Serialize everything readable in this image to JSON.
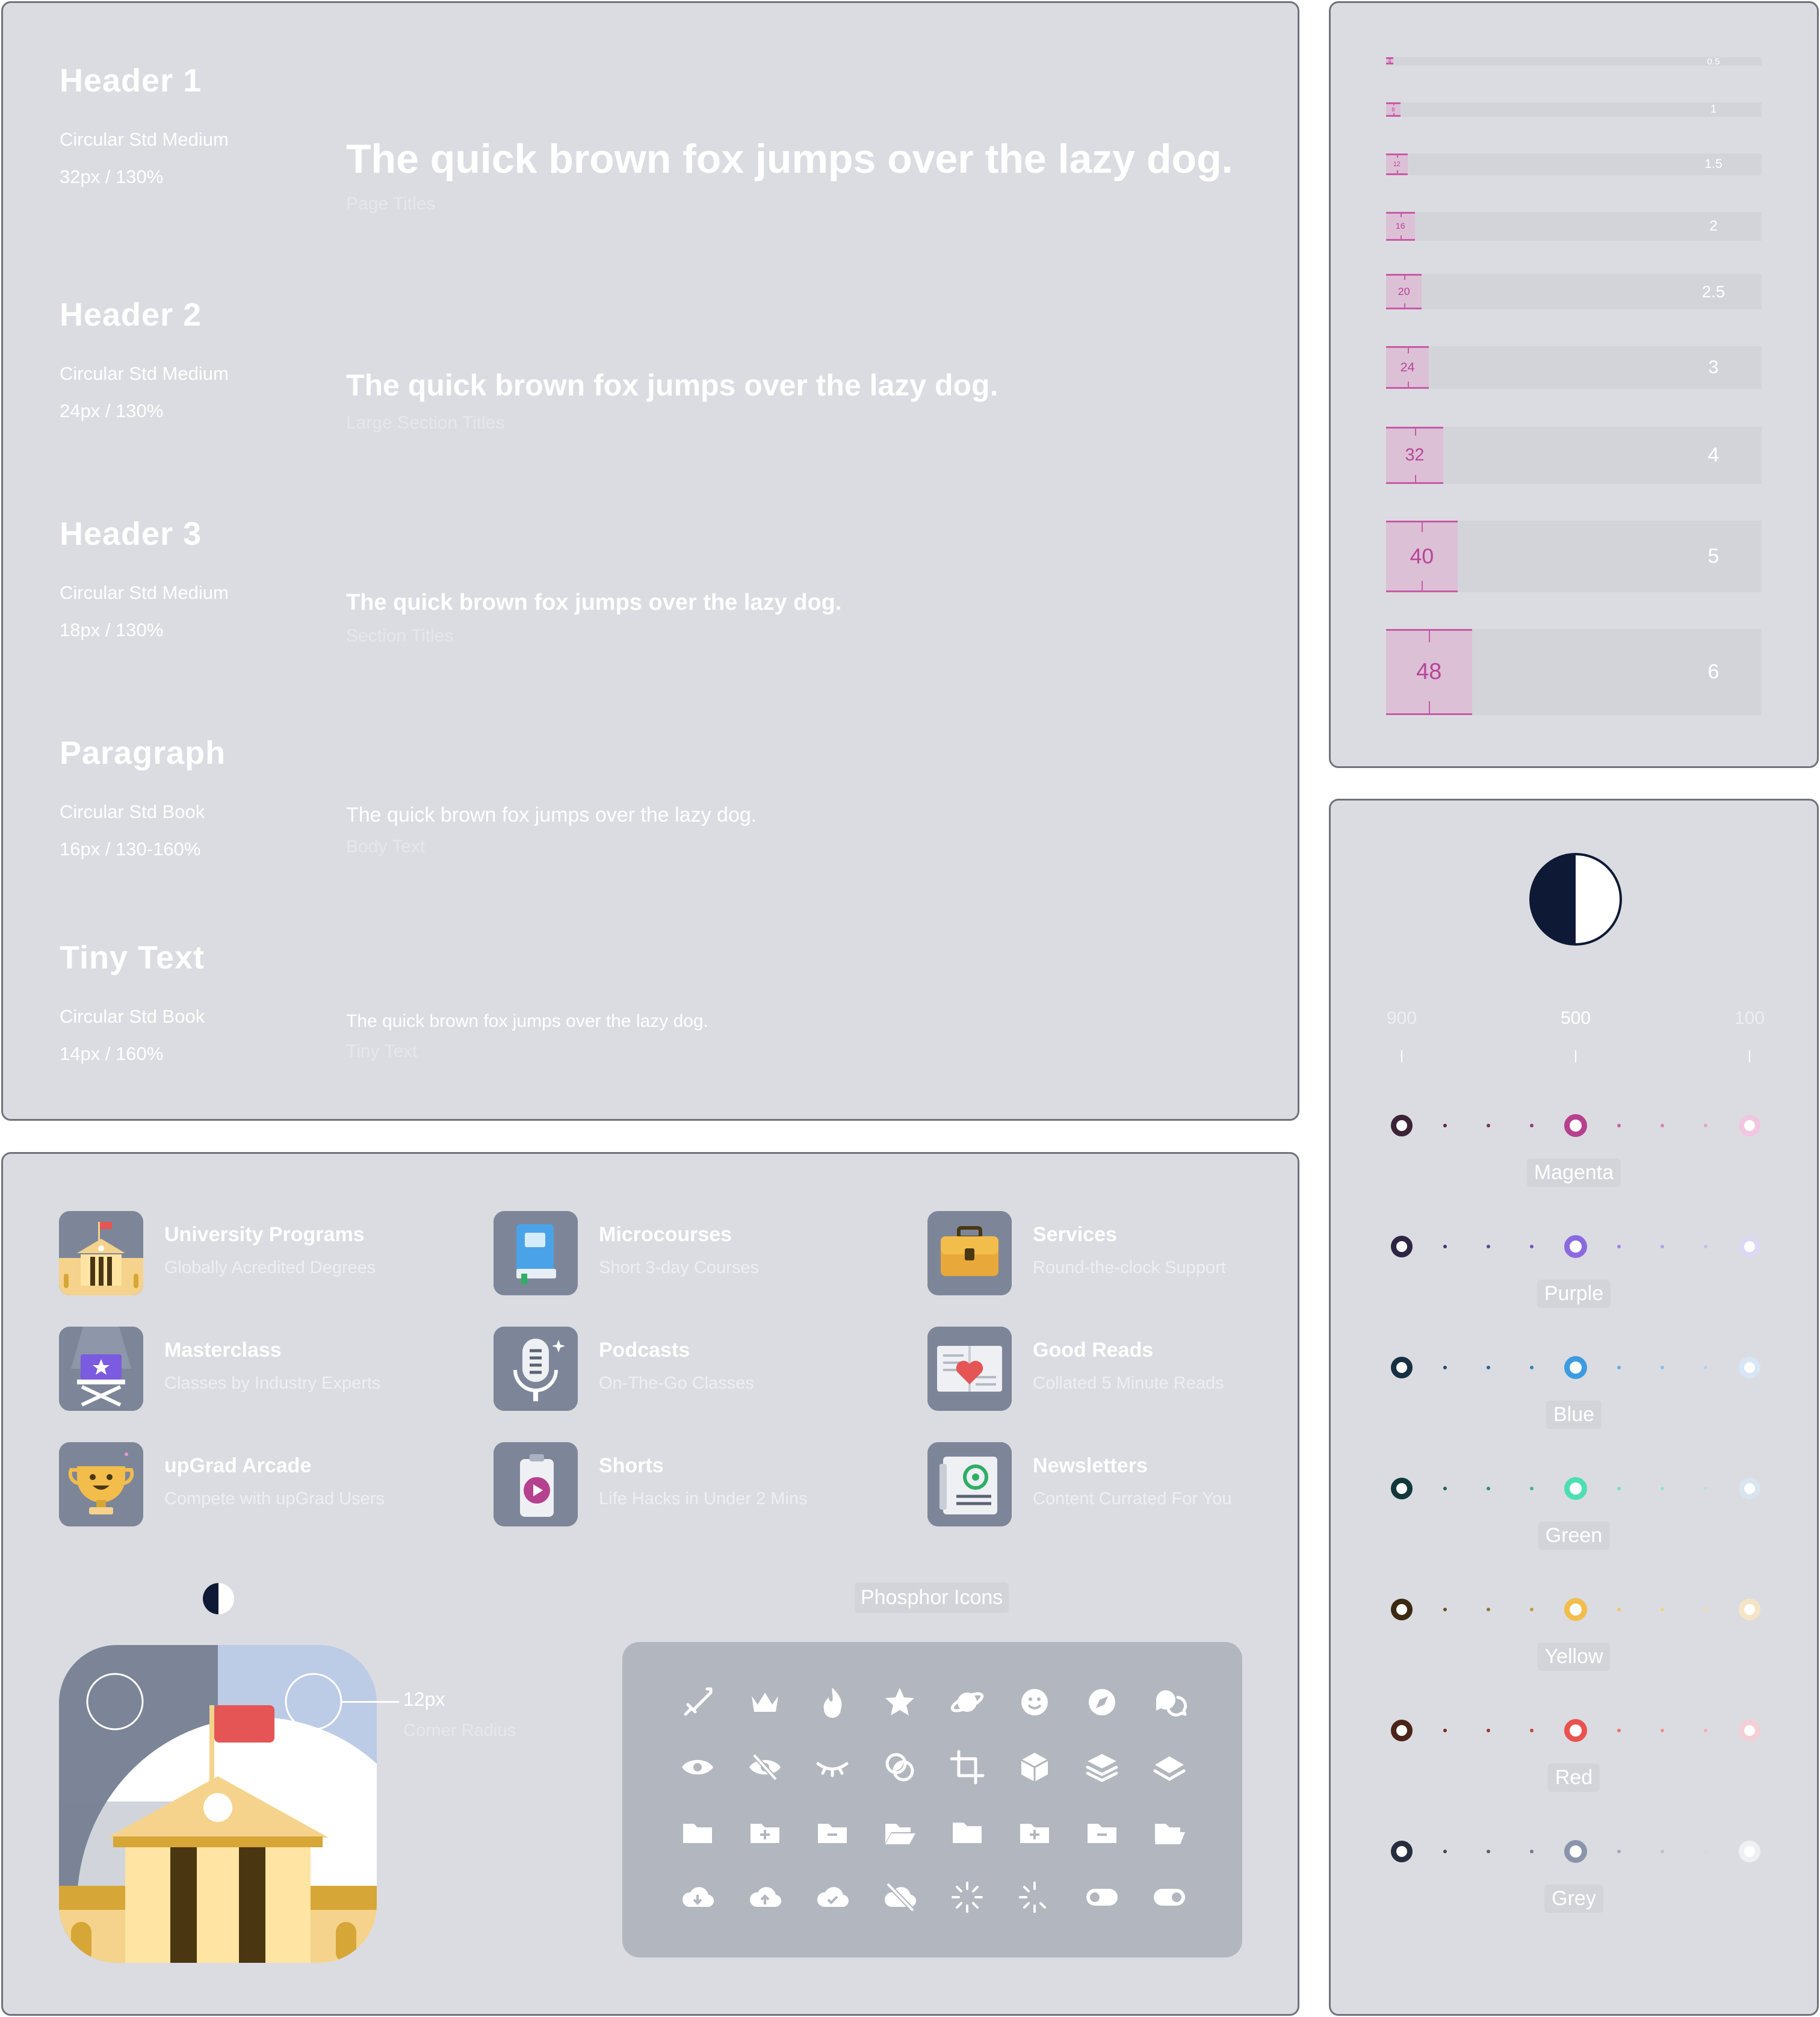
{
  "typography": {
    "sample_text": "The quick brown fox jumps over the lazy dog.",
    "styles": [
      {
        "name": "Header 1",
        "font": "Circular Std Medium",
        "size": "32px / 130%",
        "usage": "Page Titles"
      },
      {
        "name": "Header 2",
        "font": "Circular Std Medium",
        "size": "24px / 130%",
        "usage": "Large Section Titles"
      },
      {
        "name": "Header 3",
        "font": "Circular Std Medium",
        "size": "18px / 130%",
        "usage": "Section Titles"
      },
      {
        "name": "Paragraph",
        "font": "Circular Std Book",
        "size": "16px / 130-160%",
        "usage": "Body Text"
      },
      {
        "name": "Tiny Text",
        "font": "Circular Std Book",
        "size": "14px / 160%",
        "usage": "Tiny Text"
      }
    ]
  },
  "spacing": {
    "rows": [
      {
        "px": "4",
        "mult": "0.5"
      },
      {
        "px": "8",
        "mult": "1"
      },
      {
        "px": "12",
        "mult": "1.5"
      },
      {
        "px": "16",
        "mult": "2"
      },
      {
        "px": "20",
        "mult": "2.5"
      },
      {
        "px": "24",
        "mult": "3"
      },
      {
        "px": "32",
        "mult": "4"
      },
      {
        "px": "40",
        "mult": "5"
      },
      {
        "px": "48",
        "mult": "6"
      }
    ]
  },
  "colors": {
    "shade_labels": [
      "900",
      "500",
      "100"
    ],
    "palettes": [
      {
        "name": "Magenta",
        "dark": "#3b2335",
        "main": "#b6418f",
        "light": "#f1c6e0"
      },
      {
        "name": "Purple",
        "dark": "#2e2545",
        "main": "#8a6adf",
        "light": "#dcd8f3"
      },
      {
        "name": "Blue",
        "dark": "#173142",
        "main": "#3d9be0",
        "light": "#d8e5f4"
      },
      {
        "name": "Green",
        "dark": "#11393a",
        "main": "#4ddfb4",
        "light": "#d8e4ee"
      },
      {
        "name": "Yellow",
        "dark": "#3a2a12",
        "main": "#f2bd4b",
        "light": "#f5e5c6"
      },
      {
        "name": "Red",
        "dark": "#4a2418",
        "main": "#e8524f",
        "light": "#f3cfd6"
      },
      {
        "name": "Grey",
        "dark": "#262d3e",
        "main": "#8a94aa",
        "light": "#eef0f4"
      }
    ]
  },
  "products": [
    {
      "title": "University Programs",
      "subtitle": "Globally Acredited Degrees",
      "icon": "university-icon"
    },
    {
      "title": "Microcourses",
      "subtitle": "Short 3-day Courses",
      "icon": "book-icon"
    },
    {
      "title": "Services",
      "subtitle": "Round-the-clock Support",
      "icon": "briefcase-icon"
    },
    {
      "title": "Masterclass",
      "subtitle": "Classes by Industry Experts",
      "icon": "director-chair-icon"
    },
    {
      "title": "Podcasts",
      "subtitle": "On-The-Go Classes",
      "icon": "microphone-icon"
    },
    {
      "title": "Good Reads",
      "subtitle": "Collated 5 Minute Reads",
      "icon": "open-book-heart-icon"
    },
    {
      "title": "upGrad Arcade",
      "subtitle": "Compete with upGrad Users",
      "icon": "trophy-icon"
    },
    {
      "title": "Shorts",
      "subtitle": "Life Hacks in Under 2 Mins",
      "icon": "play-clip-icon"
    },
    {
      "title": "Newsletters",
      "subtitle": "Content Currated For You",
      "icon": "newsletter-icon"
    }
  ],
  "corner_radius": {
    "value": "12px",
    "label": "Corner Radius"
  },
  "phosphor": {
    "title": "Phosphor Icons",
    "icons": [
      "sword-icon",
      "crown-icon",
      "fire-icon",
      "star-icon",
      "planet-icon",
      "smiley-icon",
      "compass-icon",
      "chats-icon",
      "eye-icon",
      "eye-slash-icon",
      "eye-closed-icon",
      "intersect-icon",
      "crop-icon",
      "cube-icon",
      "stack-icon",
      "stack-simple-icon",
      "folder-icon",
      "folder-plus-icon",
      "folder-minus-icon",
      "folder-open-icon",
      "folder-simple-icon",
      "folder-simple-plus-icon",
      "folder-simple-minus-icon",
      "folder-notch-open-icon",
      "cloud-arrow-down-icon",
      "cloud-arrow-up-icon",
      "cloud-check-icon",
      "cloud-slash-icon",
      "spinner-icon",
      "spinner-gap-icon",
      "toggle-left-icon",
      "toggle-right-icon"
    ]
  }
}
